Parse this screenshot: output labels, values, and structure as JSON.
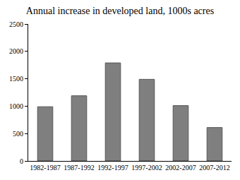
{
  "chart_data": {
    "type": "bar",
    "title": "Annual increase in developed land, 1000s acres",
    "categories": [
      "1982-1987",
      "1987-1992",
      "1992-1997",
      "1997-2002",
      "2002-2007",
      "2007-2012"
    ],
    "values": [
      990,
      1190,
      1790,
      1490,
      1010,
      610
    ],
    "color": "#7f7f7f",
    "ylim": [
      0,
      2500
    ],
    "yticks": [
      0,
      500,
      1000,
      1500,
      2000,
      2500
    ],
    "grid": false
  }
}
